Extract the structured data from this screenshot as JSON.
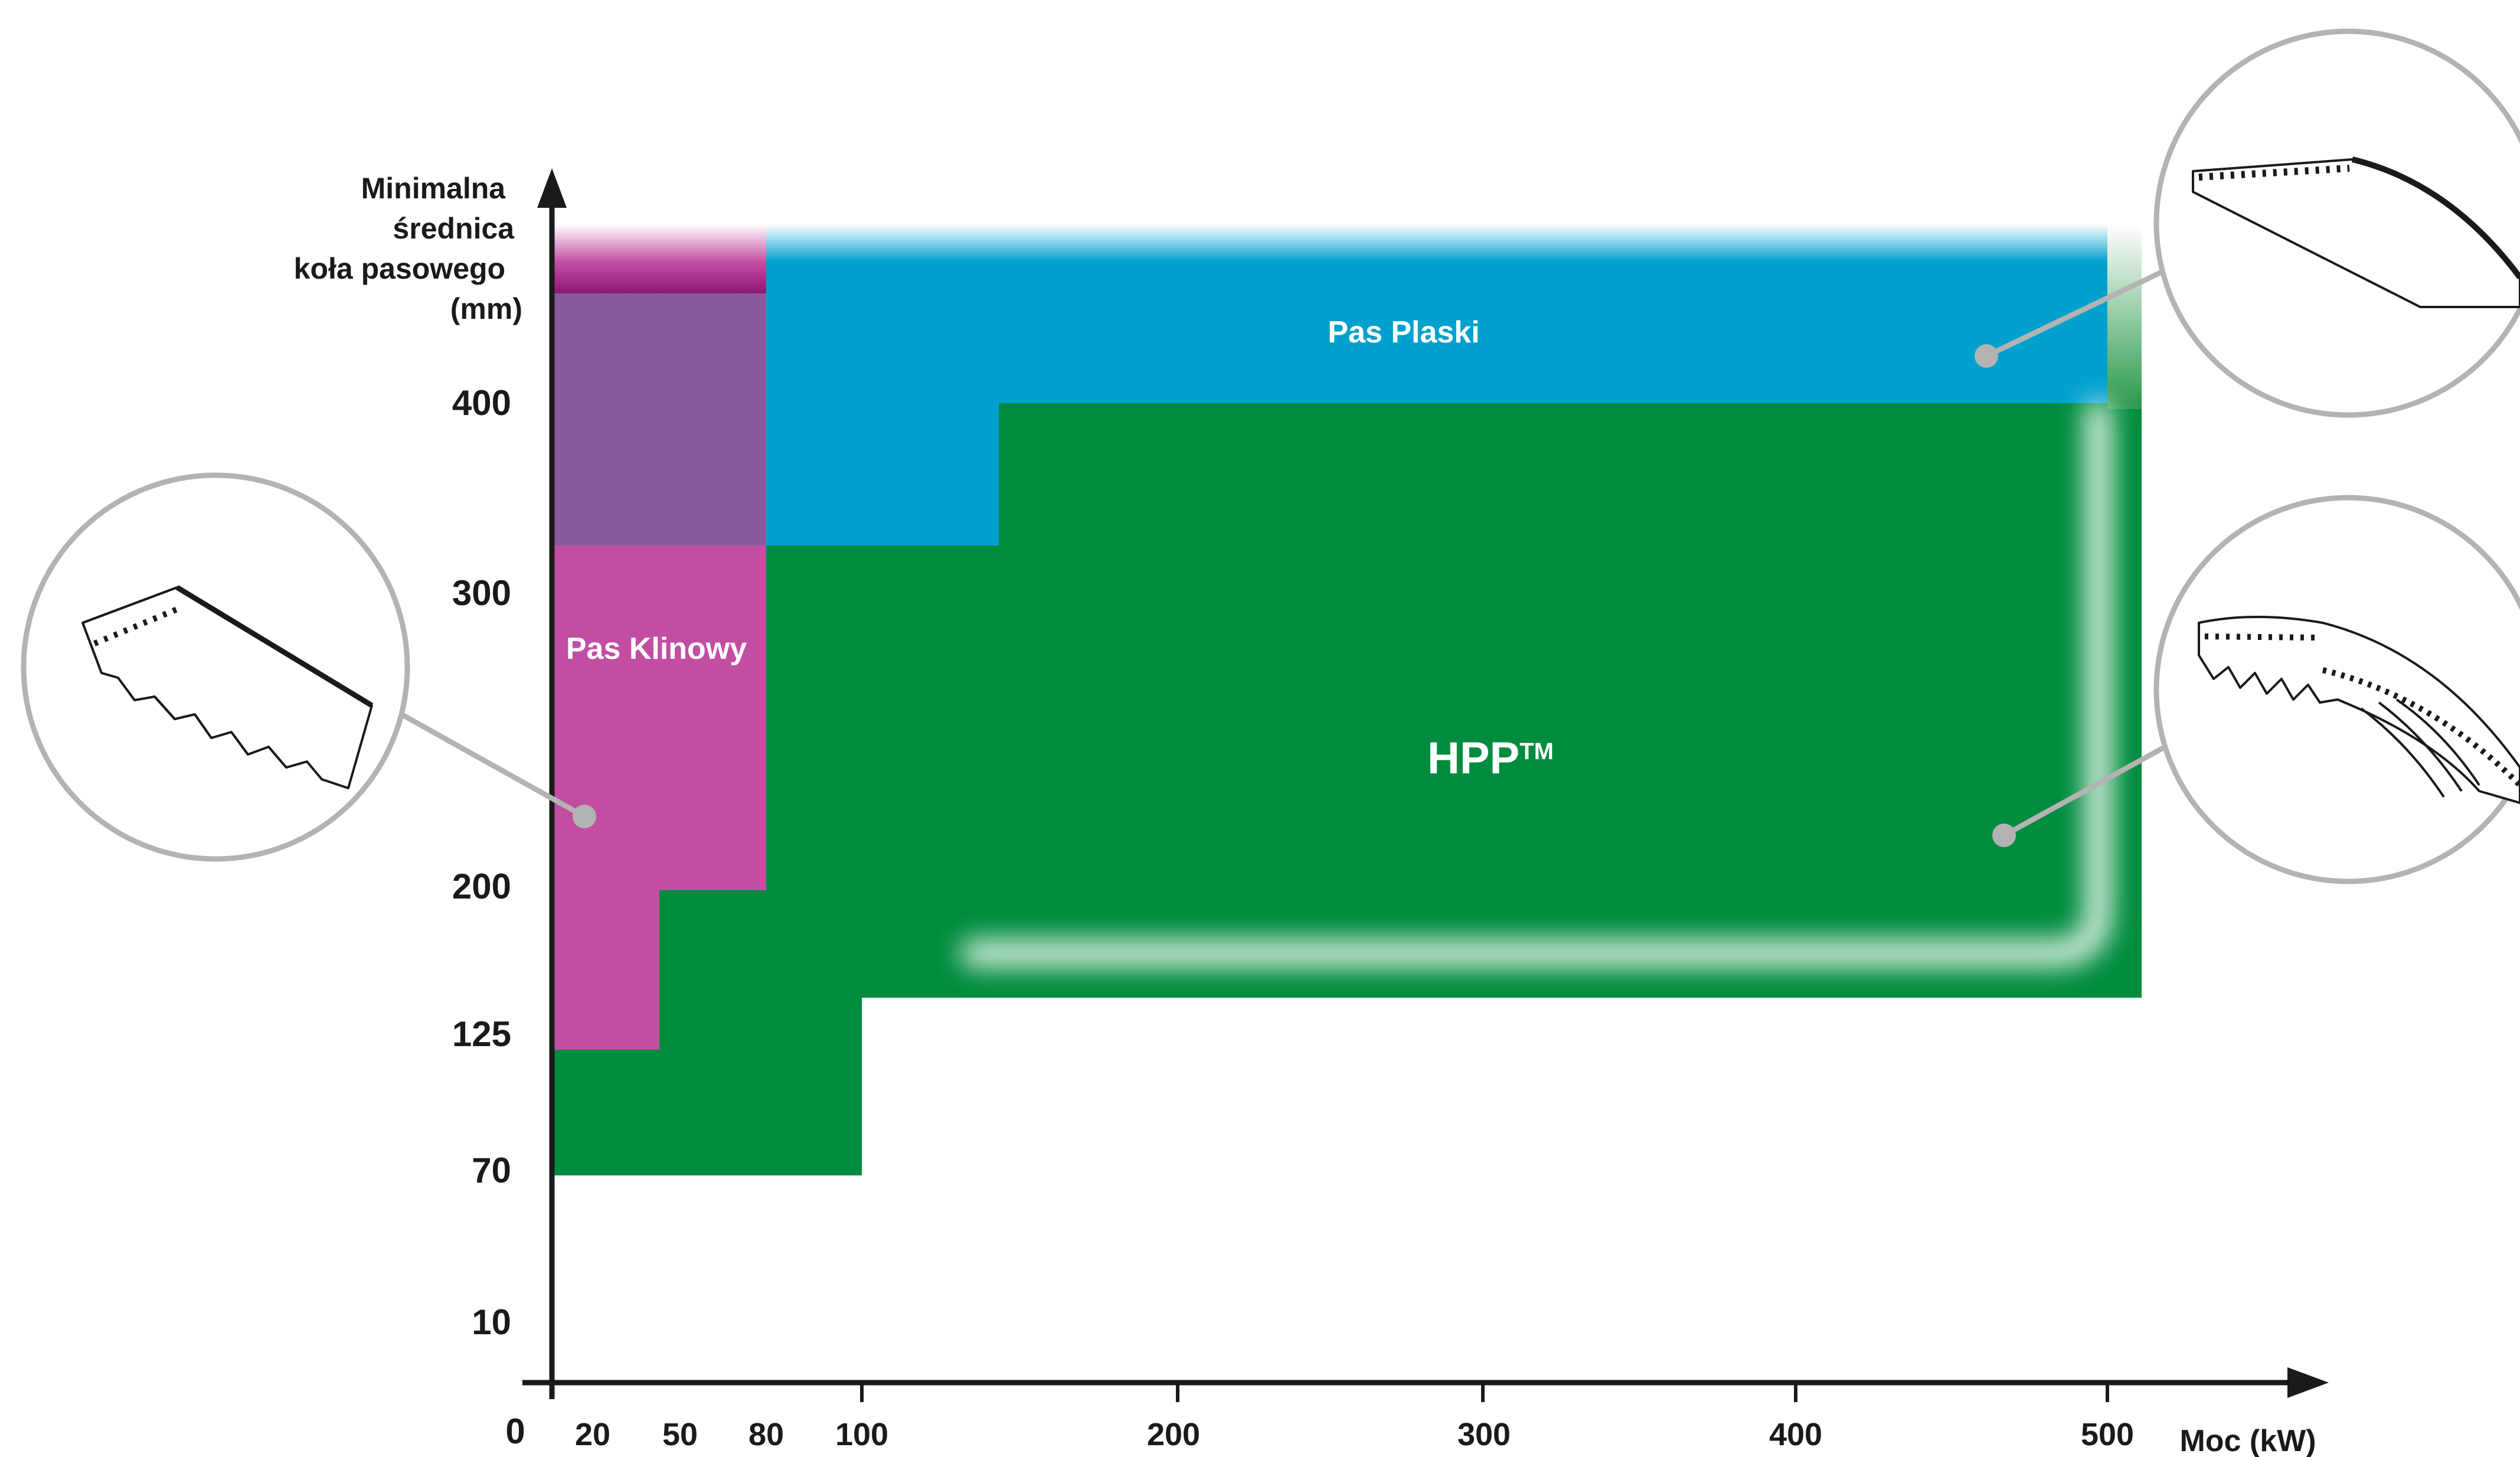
{
  "chart_data": {
    "type": "area",
    "xlabel": "Moc (kW)",
    "ylabel": [
      "Minimalna",
      "średnica",
      "koła pasowego",
      "(mm)"
    ],
    "x_ticks": [
      "20",
      "50",
      "80",
      "100",
      "200",
      "300",
      "400",
      "500"
    ],
    "y_ticks": [
      "10",
      "70",
      "125",
      "200",
      "300",
      "400"
    ],
    "origin_label": "0",
    "regions": [
      {
        "name": "Pas Klinowy",
        "color": "#c24ea3",
        "description_points": [
          [
            0,
            125
          ],
          [
            35,
            125
          ],
          [
            35,
            200
          ],
          [
            70,
            200
          ],
          [
            70,
            330
          ],
          [
            0,
            330
          ]
        ]
      },
      {
        "name": "Pas Klinowy (upper band)",
        "color": "#8b5a9c",
        "description_points": [
          [
            0,
            330
          ],
          [
            70,
            330
          ],
          [
            70,
            455
          ],
          [
            0,
            455
          ]
        ]
      },
      {
        "name": "Pas Plaski",
        "color": "#00a0cf",
        "description_points": [
          [
            70,
            330
          ],
          [
            145,
            330
          ],
          [
            145,
            400
          ],
          [
            500,
            400
          ],
          [
            500,
            470
          ],
          [
            70,
            470
          ]
        ]
      },
      {
        "name": "HPP",
        "color": "#008c3e",
        "description_points": [
          [
            0,
            70
          ],
          [
            100,
            70
          ],
          [
            100,
            170
          ],
          [
            510,
            170
          ],
          [
            510,
            400
          ],
          [
            145,
            400
          ],
          [
            145,
            330
          ],
          [
            70,
            330
          ],
          [
            70,
            200
          ],
          [
            35,
            200
          ],
          [
            35,
            125
          ],
          [
            0,
            125
          ]
        ]
      }
    ]
  },
  "labels": {
    "klinowy": "Pas Klinowy",
    "plaski": "Pas Plaski",
    "hpp": "HPP",
    "hpp_tm": "TM"
  },
  "colors": {
    "klinowy": "#c24ea3",
    "klinowy_upper": "#8b5a9c",
    "plaski": "#00a0cf",
    "hpp": "#008c3e",
    "leader": "#b3b3b3",
    "axis": "#1a1a1a"
  },
  "icons": {
    "klinowy": "v-belt-cross-section-icon",
    "plaski": "flat-belt-cross-section-icon",
    "hpp": "multi-rib-belt-cross-section-icon"
  }
}
